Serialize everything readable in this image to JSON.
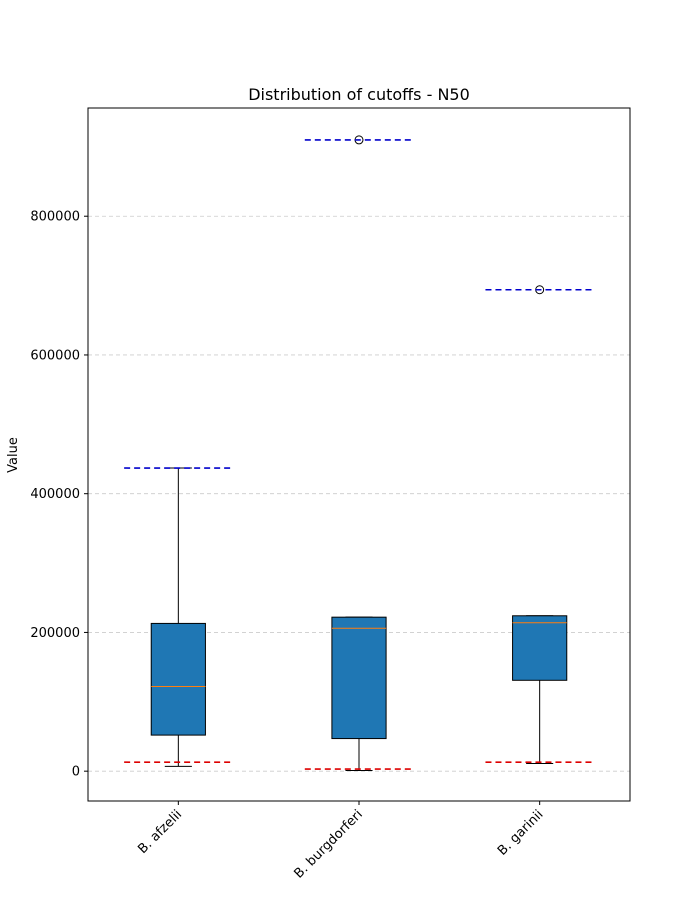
{
  "chart_data": {
    "type": "box",
    "title": "Distribution of cutoffs - N50",
    "xlabel": "",
    "ylabel": "Value",
    "ylim": [
      -43000,
      956000
    ],
    "yticks": [
      0,
      200000,
      400000,
      600000,
      800000
    ],
    "ytick_labels": [
      "0",
      "200000",
      "400000",
      "600000",
      "800000"
    ],
    "grid": "horizontal dashed",
    "box_color": "#1f77b4",
    "median_color": "#ff7f0e",
    "upper_line_color": "#0000cc",
    "lower_line_color": "#dd0000",
    "categories": [
      "B. afzelii",
      "B. burgdorferi",
      "B. garinii"
    ],
    "boxes": [
      {
        "category": "B. afzelii",
        "whisker_low": 7000,
        "q1": 52000,
        "median": 122000,
        "q3": 213000,
        "whisker_high": 437000,
        "outliers": [],
        "upper_line": 437000,
        "lower_line": 13000
      },
      {
        "category": "B. burgdorferi",
        "whisker_low": 1000,
        "q1": 47000,
        "median": 206000,
        "q3": 222000,
        "whisker_high": 222000,
        "outliers": [
          910000
        ],
        "upper_line": 910000,
        "lower_line": 3000
      },
      {
        "category": "B. garinii",
        "whisker_low": 11000,
        "q1": 131000,
        "median": 214000,
        "q3": 224000,
        "whisker_high": 224000,
        "outliers": [
          694000
        ],
        "upper_line": 694000,
        "lower_line": 13000
      }
    ]
  }
}
